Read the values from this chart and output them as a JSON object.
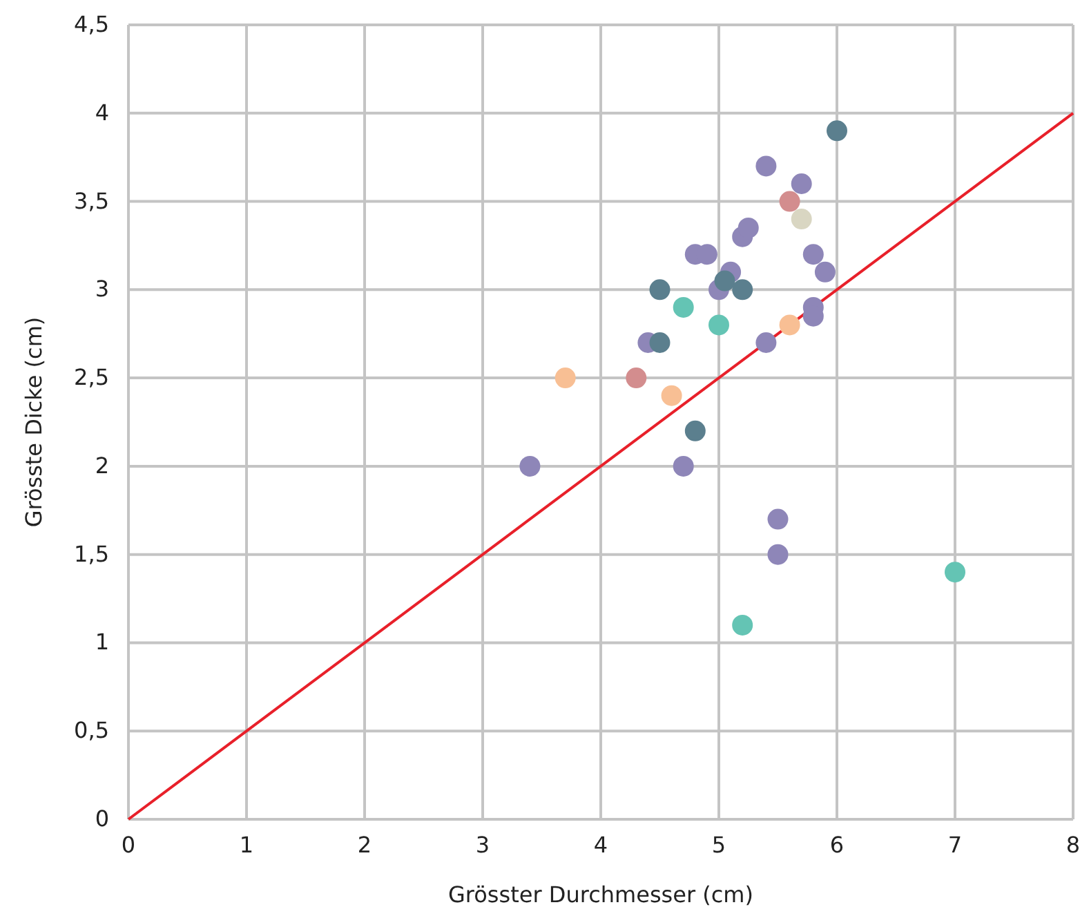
{
  "chart_data": {
    "type": "scatter",
    "xlabel": "Grösster Durchmesser (cm)",
    "ylabel": "Grösste Dicke (cm)",
    "xlim": [
      0,
      8
    ],
    "xticks": [
      0,
      1,
      2,
      3,
      4,
      5,
      6,
      7,
      8
    ],
    "ylim": [
      0,
      4.5
    ],
    "yticks": [
      0,
      {
        "value": 0.5,
        "label": "0,5"
      },
      1,
      {
        "value": 1.5,
        "label": "1,5"
      },
      2,
      {
        "value": 2.5,
        "label": "2,5"
      },
      3,
      {
        "value": 3.5,
        "label": "3,5"
      },
      4,
      {
        "value": 4.5,
        "label": "4,5"
      }
    ],
    "grid": true,
    "marker": "circle",
    "series": [
      {
        "type": "line",
        "color": "#e8202a",
        "x": [
          0,
          8
        ],
        "values": [
          0,
          4
        ],
        "marker": "none"
      },
      {
        "color": "#8e86b8",
        "x": [
          3.4,
          4.4,
          4.7,
          4.8,
          4.9,
          5.0,
          5.1,
          5.2,
          5.25,
          5.4,
          5.4,
          5.5,
          5.5,
          5.7,
          5.8,
          5.8,
          5.8,
          5.9
        ],
        "values": [
          2,
          2.7,
          2,
          3.2,
          3.2,
          3.0,
          3.1,
          3.3,
          3.35,
          3.7,
          2.7,
          1.7,
          1.5,
          3.6,
          3.2,
          2.9,
          2.85,
          3.1
        ]
      },
      {
        "color": "#5b7f8e",
        "x": [
          4.5,
          4.5,
          4.8,
          5.05,
          5.2,
          6.0
        ],
        "values": [
          3.0,
          2.7,
          2.2,
          3.05,
          3.0,
          3.9
        ]
      },
      {
        "color": "#64c4b4",
        "x": [
          4.7,
          5.0,
          5.2,
          7.0
        ],
        "values": [
          2.9,
          2.8,
          1.1,
          1.4
        ]
      },
      {
        "color": "#f8bf94",
        "x": [
          3.7,
          4.6,
          5.6
        ],
        "values": [
          2.5,
          2.4,
          2.8
        ]
      },
      {
        "color": "#d38d8e",
        "x": [
          4.3,
          5.6
        ],
        "values": [
          2.5,
          3.5
        ]
      },
      {
        "color": "#d9d6c2",
        "x": [
          5.7
        ],
        "values": [
          3.4
        ]
      }
    ]
  }
}
